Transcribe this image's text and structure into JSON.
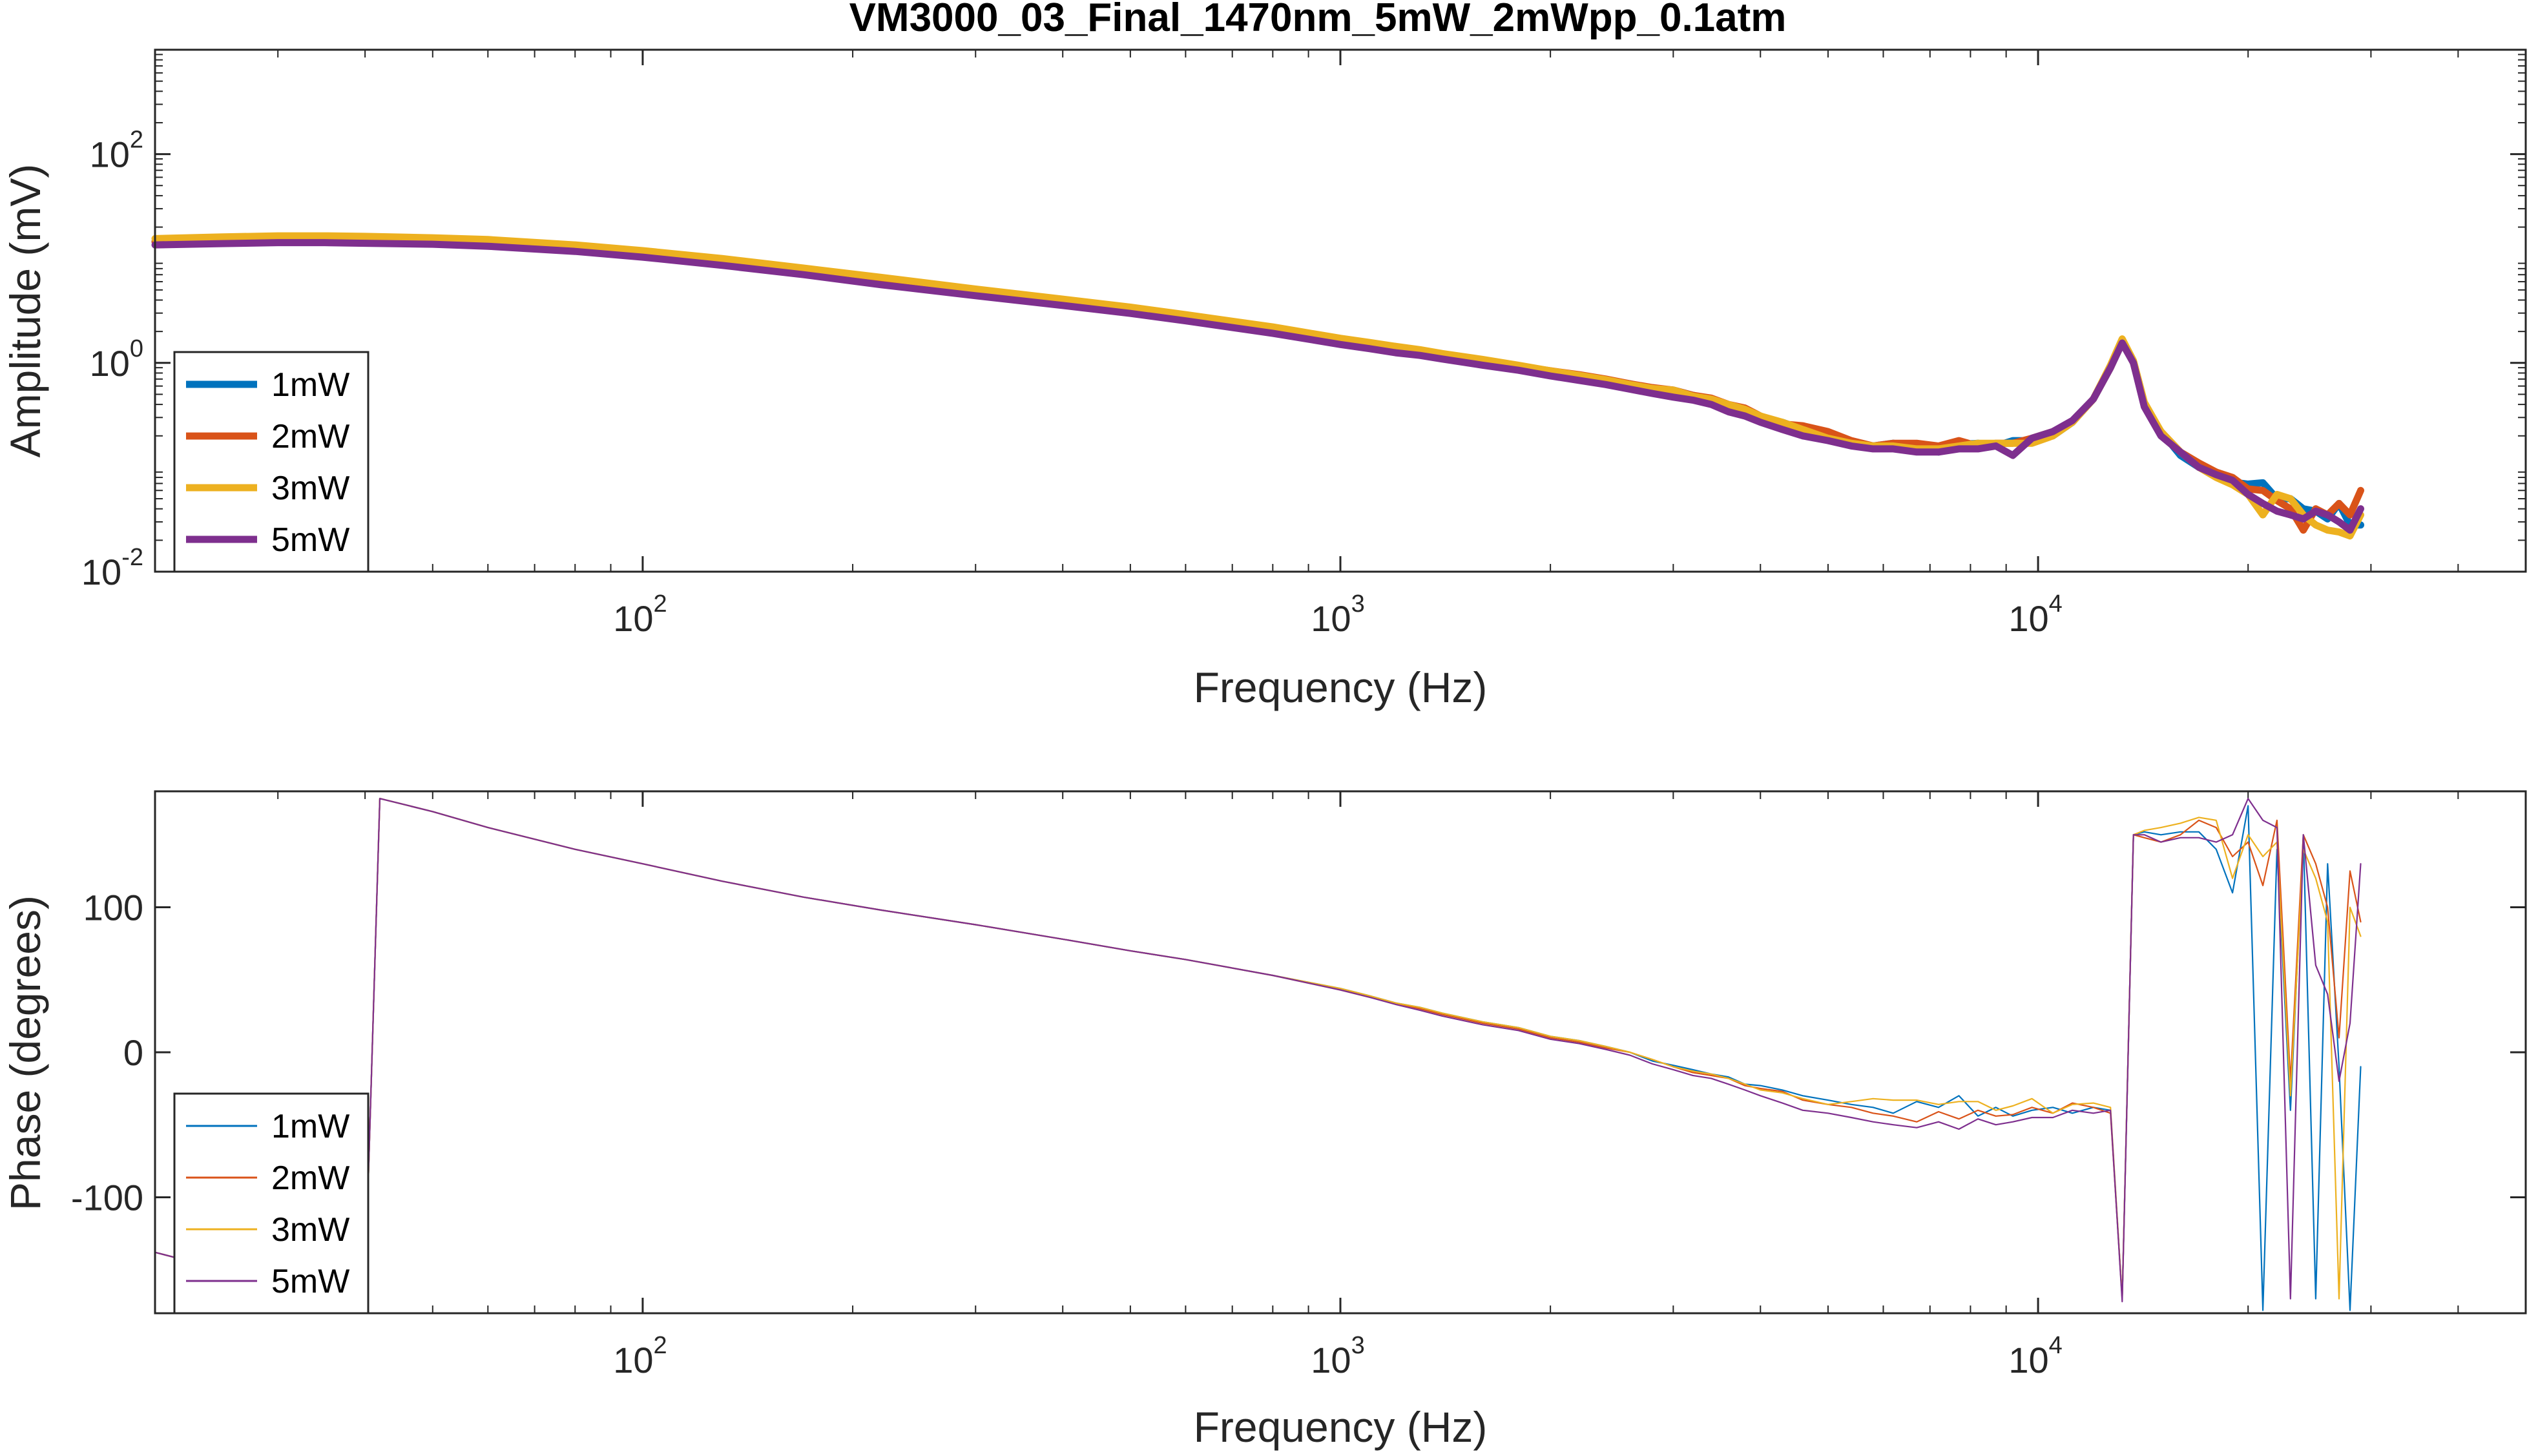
{
  "chart_data": [
    {
      "type": "line",
      "title": "VM3000_03_Final_1470nm_5mW_2mWpp_0.1atm",
      "xlabel": "Frequency (Hz)",
      "ylabel": "Amplitude (mV)",
      "xscale": "log",
      "yscale": "log",
      "xlim": [
        20,
        50000
      ],
      "ylim": [
        0.01,
        1000
      ],
      "x_ticks": [
        {
          "base": "10",
          "exp": "2",
          "value": 100
        },
        {
          "base": "10",
          "exp": "3",
          "value": 1000
        },
        {
          "base": "10",
          "exp": "4",
          "value": 10000
        }
      ],
      "y_ticks": [
        {
          "base": "10",
          "exp": "-2",
          "value": 0.01
        },
        {
          "base": "10",
          "exp": "0",
          "value": 1
        },
        {
          "base": "10",
          "exp": "2",
          "value": 100
        }
      ],
      "legend_location": "bottom-left",
      "line_width": "thick",
      "x": [
        20,
        25,
        30,
        35,
        40,
        50,
        60,
        80,
        100,
        130,
        170,
        220,
        300,
        400,
        500,
        600,
        800,
        1000,
        1100,
        1200,
        1300,
        1400,
        1600,
        1800,
        2000,
        2200,
        2400,
        2600,
        2800,
        3000,
        3200,
        3400,
        3600,
        3800,
        4000,
        4300,
        4600,
        5000,
        5400,
        5800,
        6200,
        6700,
        7200,
        7700,
        8200,
        8700,
        9200,
        9800,
        10500,
        11200,
        12000,
        12700,
        13200,
        13700,
        14200,
        15000,
        16000,
        17000,
        18000,
        19000,
        20000,
        21000,
        22000,
        23000,
        24000,
        25000,
        26000,
        27000,
        28000,
        29000
      ],
      "series": [
        {
          "name": "1mW",
          "color": "#0072BD",
          "values": [
            14.5,
            15,
            15.4,
            15.4,
            15.2,
            14.8,
            14.2,
            12.6,
            11.1,
            9.3,
            7.6,
            6.1,
            4.75,
            3.82,
            3.2,
            2.72,
            2.07,
            1.66,
            1.52,
            1.4,
            1.3,
            1.2,
            1.06,
            0.94,
            0.83,
            0.76,
            0.69,
            0.63,
            0.57,
            0.55,
            0.49,
            0.45,
            0.39,
            0.36,
            0.3,
            0.27,
            0.23,
            0.2,
            0.165,
            0.16,
            0.17,
            0.155,
            0.14,
            0.165,
            0.17,
            0.16,
            0.18,
            0.18,
            0.2,
            0.27,
            0.45,
            0.9,
            1.6,
            1.0,
            0.4,
            0.22,
            0.13,
            0.1,
            0.09,
            0.072,
            0.069,
            0.071,
            0.05,
            0.05,
            0.04,
            0.038,
            0.032,
            0.045,
            0.028,
            0.028
          ]
        },
        {
          "name": "2mW",
          "color": "#D95319",
          "values": [
            14.5,
            15,
            15.4,
            15.4,
            15.2,
            14.8,
            14.2,
            12.6,
            11.1,
            9.3,
            7.6,
            6.1,
            4.75,
            3.82,
            3.2,
            2.72,
            2.07,
            1.7,
            1.5,
            1.38,
            1.28,
            1.2,
            1.06,
            0.93,
            0.84,
            0.77,
            0.7,
            0.63,
            0.58,
            0.55,
            0.49,
            0.46,
            0.4,
            0.37,
            0.31,
            0.26,
            0.25,
            0.22,
            0.18,
            0.16,
            0.17,
            0.17,
            0.16,
            0.18,
            0.16,
            0.17,
            0.17,
            0.19,
            0.22,
            0.27,
            0.45,
            0.9,
            1.58,
            1.0,
            0.4,
            0.22,
            0.14,
            0.11,
            0.09,
            0.08,
            0.062,
            0.06,
            0.048,
            0.04,
            0.025,
            0.04,
            0.035,
            0.045,
            0.035,
            0.06
          ]
        },
        {
          "name": "3mW",
          "color": "#EDB120",
          "values": [
            15.5,
            16.1,
            16.5,
            16.5,
            16.3,
            15.8,
            15.2,
            13.5,
            11.9,
            10.0,
            8.1,
            6.6,
            5.1,
            4.08,
            3.42,
            2.9,
            2.21,
            1.72,
            1.57,
            1.44,
            1.34,
            1.23,
            1.08,
            0.95,
            0.84,
            0.76,
            0.69,
            0.62,
            0.57,
            0.55,
            0.48,
            0.45,
            0.4,
            0.36,
            0.31,
            0.27,
            0.23,
            0.19,
            0.17,
            0.16,
            0.16,
            0.15,
            0.15,
            0.16,
            0.17,
            0.17,
            0.17,
            0.17,
            0.2,
            0.27,
            0.45,
            0.95,
            1.7,
            1.05,
            0.42,
            0.22,
            0.14,
            0.1,
            0.08,
            0.068,
            0.055,
            0.035,
            0.055,
            0.05,
            0.035,
            0.028,
            0.025,
            0.024,
            0.022,
            0.035
          ]
        },
        {
          "name": "5mW",
          "color": "#7E2F8E",
          "values": [
            13.5,
            13.9,
            14.2,
            14.2,
            14.0,
            13.7,
            13.1,
            11.7,
            10.3,
            8.6,
            7.0,
            5.6,
            4.4,
            3.55,
            2.98,
            2.53,
            1.92,
            1.5,
            1.37,
            1.25,
            1.18,
            1.09,
            0.95,
            0.85,
            0.75,
            0.68,
            0.62,
            0.56,
            0.51,
            0.47,
            0.44,
            0.4,
            0.34,
            0.31,
            0.27,
            0.23,
            0.2,
            0.18,
            0.16,
            0.15,
            0.15,
            0.14,
            0.14,
            0.15,
            0.15,
            0.16,
            0.13,
            0.19,
            0.22,
            0.28,
            0.45,
            0.9,
            1.55,
            1.0,
            0.38,
            0.2,
            0.14,
            0.1,
            0.085,
            0.075,
            0.055,
            0.045,
            0.038,
            0.035,
            0.032,
            0.038,
            0.035,
            0.03,
            0.025,
            0.04
          ]
        }
      ]
    },
    {
      "type": "line",
      "title": "",
      "xlabel": "Frequency (Hz)",
      "ylabel": "Phase (degrees)",
      "xscale": "log",
      "yscale": "linear",
      "xlim": [
        20,
        50000
      ],
      "ylim": [
        -180,
        180
      ],
      "x_ticks": [
        {
          "base": "10",
          "exp": "2",
          "value": 100
        },
        {
          "base": "10",
          "exp": "3",
          "value": 1000
        },
        {
          "base": "10",
          "exp": "4",
          "value": 10000
        }
      ],
      "y_ticks": [
        {
          "label": "100",
          "value": 100
        },
        {
          "label": "0",
          "value": 0
        },
        {
          "label": "-100",
          "value": -100
        }
      ],
      "legend_location": "bottom-left",
      "line_width": "thin",
      "x": [
        20,
        25,
        30,
        35,
        39.9,
        42,
        50,
        60,
        80,
        100,
        130,
        170,
        220,
        300,
        400,
        500,
        600,
        800,
        1000,
        1100,
        1200,
        1300,
        1400,
        1600,
        1800,
        2000,
        2200,
        2400,
        2600,
        2800,
        3000,
        3200,
        3400,
        3600,
        3800,
        4000,
        4300,
        4600,
        5000,
        5400,
        5800,
        6200,
        6700,
        7200,
        7700,
        8200,
        8700,
        9200,
        9800,
        10500,
        11200,
        12000,
        12700,
        13200,
        13700,
        14200,
        15000,
        16000,
        17000,
        18000,
        19000,
        20000,
        21000,
        22000,
        23000,
        24000,
        25000,
        26000,
        27000,
        28000,
        29000
      ],
      "series": [
        {
          "name": "1mW",
          "color": "#0072BD",
          "values": [
            -138,
            -150,
            -160,
            -170,
            -178,
            175,
            166,
            155,
            140,
            130,
            118,
            107,
            98,
            88,
            78,
            70,
            64,
            53,
            44,
            39,
            34,
            31,
            27,
            21,
            17,
            11,
            8,
            4,
            0,
            -6,
            -9,
            -12,
            -15,
            -17,
            -22,
            -23,
            -26,
            -30,
            -33,
            -36,
            -38,
            -42,
            -34,
            -38,
            -30,
            -44,
            -38,
            -44,
            -40,
            -38,
            -42,
            -38,
            -40,
            -170,
            150,
            152,
            150,
            152,
            152,
            140,
            110,
            170,
            -178,
            140,
            -40,
            150,
            -170,
            130,
            -10,
            -178,
            -10
          ]
        },
        {
          "name": "2mW",
          "color": "#D95319",
          "values": [
            -138,
            -150,
            -160,
            -170,
            -178,
            175,
            166,
            155,
            140,
            130,
            118,
            107,
            98,
            88,
            78,
            70,
            64,
            53,
            43,
            38,
            34,
            30,
            26,
            20,
            16,
            10,
            7,
            3,
            0,
            -5,
            -10,
            -14,
            -16,
            -18,
            -23,
            -25,
            -27,
            -33,
            -36,
            -38,
            -42,
            -44,
            -48,
            -41,
            -46,
            -40,
            -44,
            -43,
            -38,
            -42,
            -35,
            -38,
            -42,
            -170,
            150,
            148,
            145,
            150,
            160,
            155,
            135,
            145,
            115,
            160,
            -20,
            150,
            130,
            100,
            10,
            125,
            90
          ]
        },
        {
          "name": "3mW",
          "color": "#EDB120",
          "values": [
            -138,
            -150,
            -160,
            -170,
            -178,
            175,
            166,
            155,
            140,
            130,
            118,
            107,
            98,
            88,
            78,
            70,
            64,
            53,
            44,
            39,
            34,
            31,
            27,
            21,
            17,
            11,
            8,
            4,
            0,
            -5,
            -10,
            -13,
            -15,
            -18,
            -22,
            -26,
            -28,
            -32,
            -36,
            -34,
            -32,
            -33,
            -33,
            -36,
            -34,
            -34,
            -40,
            -37,
            -32,
            -42,
            -36,
            -35,
            -38,
            -170,
            150,
            153,
            155,
            158,
            162,
            160,
            120,
            150,
            135,
            145,
            -30,
            140,
            120,
            90,
            -170,
            100,
            80
          ]
        },
        {
          "name": "5mW",
          "color": "#7E2F8E",
          "values": [
            -138,
            -150,
            -160,
            -170,
            -178,
            175,
            166,
            155,
            140,
            130,
            118,
            107,
            98,
            88,
            78,
            70,
            64,
            53,
            43,
            38,
            33,
            29,
            25,
            19,
            15,
            9,
            6,
            2,
            -2,
            -8,
            -12,
            -16,
            -18,
            -22,
            -26,
            -30,
            -35,
            -40,
            -42,
            -45,
            -48,
            -50,
            -52,
            -48,
            -53,
            -46,
            -50,
            -48,
            -45,
            -45,
            -40,
            -42,
            -40,
            -172,
            150,
            150,
            145,
            148,
            148,
            145,
            150,
            175,
            160,
            155,
            -170,
            150,
            60,
            40,
            -20,
            20,
            130
          ]
        }
      ]
    }
  ]
}
